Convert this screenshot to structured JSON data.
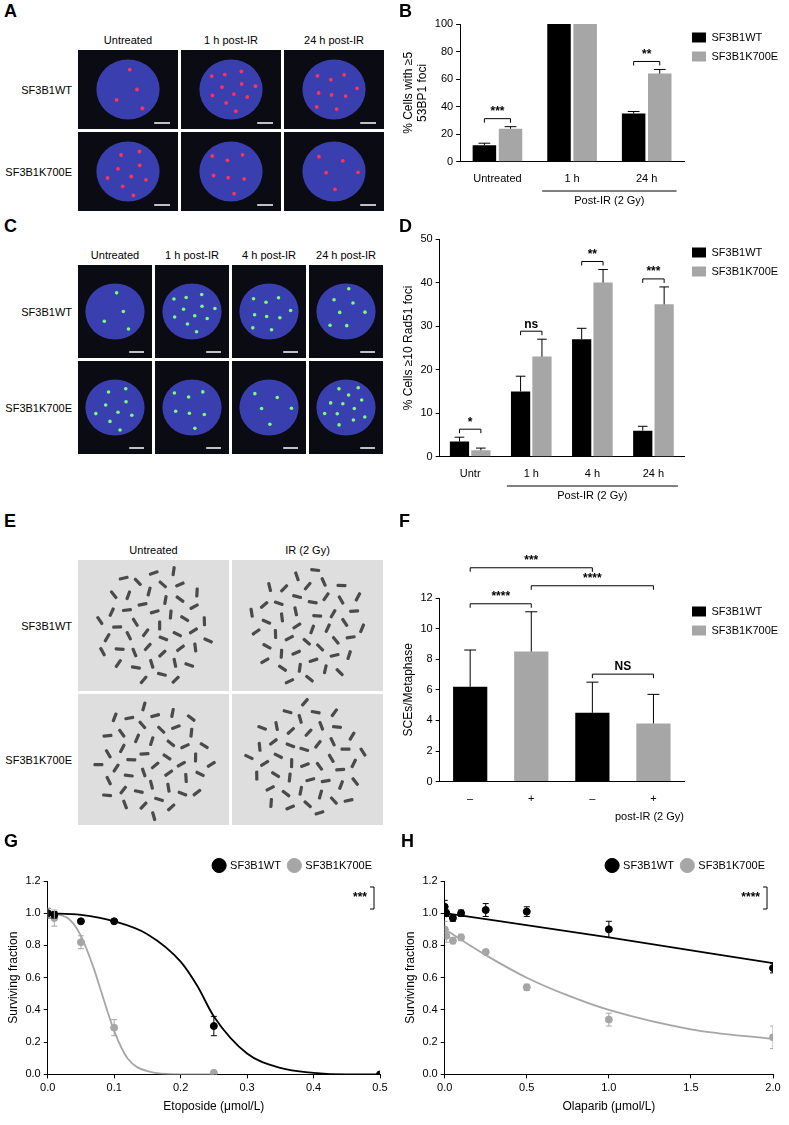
{
  "image_panels": [
    {
      "letter": "A",
      "type": "fluorescence",
      "color": "#ff3355",
      "columns": [
        "Untreated",
        "1 h post-IR",
        "24 h post-IR"
      ],
      "rows": [
        "SF3B1WT",
        "SF3B1K700E"
      ]
    },
    {
      "letter": "C",
      "type": "fluorescence",
      "color": "#7cfc7c",
      "columns": [
        "Untreated",
        "1 h post-IR",
        "4 h post-IR",
        "24 h post-IR"
      ],
      "rows": [
        "SF3B1WT",
        "SF3B1K700E"
      ]
    },
    {
      "letter": "E",
      "type": "metaphase",
      "columns": [
        "Untreated",
        "IR (2 Gy)"
      ],
      "rows": [
        "SF3B1WT",
        "SF3B1K700E"
      ]
    }
  ],
  "chart_data": [
    {
      "letter": "B",
      "type": "bar",
      "categories": [
        "Untreated",
        "1 h",
        "24 h"
      ],
      "group_label": {
        "text": "Post-IR (2 Gy)",
        "categories": [
          "1 h",
          "24 h"
        ]
      },
      "ylabel": "% Cells with ≥5 53BP1 foci",
      "ylim": [
        0,
        100
      ],
      "yticks": [
        0,
        20,
        40,
        60,
        80,
        100
      ],
      "grid": false,
      "legend": "right",
      "series": [
        {
          "name": "SF3B1WT",
          "color": "#000000",
          "values": [
            12,
            100,
            35
          ],
          "errors": [
            1.5,
            0,
            1.5
          ]
        },
        {
          "name": "SF3B1K700E",
          "color": "#a6a6a6",
          "values": [
            24,
            100,
            64
          ],
          "errors": [
            1.5,
            0,
            3
          ]
        }
      ],
      "significance": [
        {
          "category": "Untreated",
          "label": "***"
        },
        {
          "category": "24 h",
          "label": "**"
        }
      ]
    },
    {
      "letter": "D",
      "type": "bar",
      "categories": [
        "Untr",
        "1 h",
        "4 h",
        "24 h"
      ],
      "group_label": {
        "text": "Post-IR (2 Gy)",
        "categories": [
          "1 h",
          "24 h"
        ]
      },
      "ylabel": "% Cells ≥10 Rad51 foci",
      "ylim": [
        0,
        50
      ],
      "yticks": [
        0,
        10,
        20,
        30,
        40,
        50
      ],
      "grid": false,
      "legend": "right",
      "series": [
        {
          "name": "SF3B1WT",
          "color": "#000000",
          "values": [
            3.5,
            15,
            27,
            6
          ],
          "errors": [
            1,
            3.5,
            2.5,
            1
          ]
        },
        {
          "name": "SF3B1K700E",
          "color": "#a6a6a6",
          "values": [
            1.5,
            23,
            40,
            35
          ],
          "errors": [
            0.5,
            4,
            3,
            4
          ]
        }
      ],
      "significance": [
        {
          "category": "Untr",
          "label": "*"
        },
        {
          "category": "1 h",
          "label": "ns"
        },
        {
          "category": "4 h",
          "label": "**"
        },
        {
          "category": "24 h",
          "label": "***"
        }
      ]
    },
    {
      "letter": "F",
      "type": "bar",
      "categories": [
        "–",
        "+",
        "–",
        "+"
      ],
      "xlabel": "post-IR (2 Gy)",
      "ylabel": "SCEs/Metaphase",
      "ylim": [
        0,
        12
      ],
      "yticks": [
        0,
        2,
        4,
        6,
        8,
        10,
        12
      ],
      "grid": false,
      "legend": "right",
      "series": [
        {
          "name": "SF3B1WT",
          "color": "#000000",
          "values": [
            6.2,
            null,
            4.5,
            null
          ],
          "errors": [
            2.4,
            null,
            2.0,
            null
          ]
        },
        {
          "name": "SF3B1K700E",
          "color": "#a6a6a6",
          "values": [
            null,
            8.5,
            null,
            3.8
          ],
          "errors": [
            null,
            2.6,
            null,
            1.9
          ]
        }
      ],
      "significance": [
        {
          "positions": [
            2,
            3
          ],
          "label": "NS"
        },
        {
          "positions": [
            0,
            1
          ],
          "label": "****"
        },
        {
          "positions": [
            1,
            3
          ],
          "label": "****"
        },
        {
          "positions": [
            0,
            2
          ],
          "label": "***"
        }
      ]
    },
    {
      "letter": "G",
      "type": "scatter",
      "xlabel": "Etoposide (μmol/L)",
      "ylabel": "Surviving fraction",
      "xlim": [
        0,
        0.5
      ],
      "xticks": [
        {
          "value": 0,
          "label": "0.0"
        },
        0.1,
        0.2,
        0.3,
        0.4,
        0.5
      ],
      "ylim": [
        0,
        1.2
      ],
      "yticks": [
        {
          "value": 0,
          "label": "0.0"
        },
        0.2,
        0.4,
        0.6,
        0.8,
        {
          "value": 1,
          "label": "1.0"
        },
        1.2
      ],
      "grid": false,
      "legend": "top",
      "series": [
        {
          "name": "SF3B1WT",
          "color": "#000000",
          "marker": "circle",
          "x": [
            0,
            0.01,
            0.05,
            0.1,
            0.25,
            0.5
          ],
          "values": [
            1.0,
            0.99,
            0.95,
            0.95,
            0.3,
            0.0
          ],
          "errors": [
            0.03,
            0.02,
            0.01,
            0.01,
            0.06,
            0
          ],
          "fit": {
            "x": [
              0,
              0.05,
              0.1,
              0.15,
              0.2,
              0.225,
              0.25,
              0.3,
              0.35,
              0.4,
              0.45,
              0.5
            ],
            "values": [
              1.0,
              0.99,
              0.95,
              0.87,
              0.7,
              0.55,
              0.36,
              0.13,
              0.04,
              0.01,
              0.0,
              0.0
            ]
          }
        },
        {
          "name": "SF3B1K700E",
          "color": "#a6a6a6",
          "marker": "circle",
          "x": [
            0,
            0.01,
            0.05,
            0.1,
            0.25
          ],
          "values": [
            1.0,
            0.97,
            0.82,
            0.29,
            0.01
          ],
          "errors": [
            0.03,
            0.05,
            0.04,
            0.05,
            0
          ],
          "fit": {
            "x": [
              0,
              0.03,
              0.05,
              0.07,
              0.08,
              0.1,
              0.12,
              0.15,
              0.2,
              0.25
            ],
            "values": [
              1.0,
              0.97,
              0.86,
              0.65,
              0.52,
              0.27,
              0.1,
              0.02,
              0.0,
              0.0
            ]
          }
        }
      ],
      "significance": [
        {
          "label": "***",
          "series": [
            "SF3B1WT",
            "SF3B1K700E"
          ]
        }
      ]
    },
    {
      "letter": "H",
      "type": "scatter",
      "xlabel": "Olaparib (μmol/L)",
      "ylabel": "Surviving fraction",
      "xlim": [
        0,
        2
      ],
      "xticks": [
        {
          "value": 0,
          "label": "0.0"
        },
        0.5,
        {
          "value": 1,
          "label": "1.0"
        },
        1.5,
        {
          "value": 2,
          "label": "2.0"
        }
      ],
      "ylim": [
        0,
        1.2
      ],
      "yticks": [
        {
          "value": 0,
          "label": "0.0"
        },
        0.2,
        0.4,
        0.6,
        0.8,
        {
          "value": 1,
          "label": "1.0"
        },
        1.2
      ],
      "grid": false,
      "legend": "top",
      "series": [
        {
          "name": "SF3B1WT",
          "color": "#000000",
          "marker": "circle",
          "x": [
            0,
            0.01,
            0.05,
            0.1,
            0.25,
            0.5,
            1,
            2
          ],
          "values": [
            1.04,
            1.0,
            0.97,
            1.0,
            1.02,
            1.01,
            0.9,
            0.66
          ],
          "errors": [
            0.04,
            0.02,
            0.02,
            0.02,
            0.04,
            0.03,
            0.05,
            0.03
          ],
          "fit": {
            "x": [
              0,
              1,
              2
            ],
            "values": [
              1.0,
              0.85,
              0.69
            ]
          }
        },
        {
          "name": "SF3B1K700E",
          "color": "#a6a6a6",
          "marker": "circle",
          "x": [
            0,
            0.01,
            0.05,
            0.1,
            0.25,
            0.5,
            1,
            2
          ],
          "values": [
            0.9,
            0.86,
            0.83,
            0.85,
            0.76,
            0.54,
            0.34,
            0.23
          ],
          "errors": [
            0.05,
            0.04,
            0.02,
            0.02,
            0.01,
            0.02,
            0.04,
            0.07
          ],
          "fit": {
            "x": [
              0,
              0.25,
              0.5,
              0.75,
              1,
              1.5,
              2
            ],
            "values": [
              0.9,
              0.74,
              0.6,
              0.49,
              0.4,
              0.28,
              0.22
            ]
          }
        }
      ],
      "significance": [
        {
          "label": "****",
          "series": [
            "SF3B1WT",
            "SF3B1K700E"
          ]
        }
      ]
    }
  ]
}
